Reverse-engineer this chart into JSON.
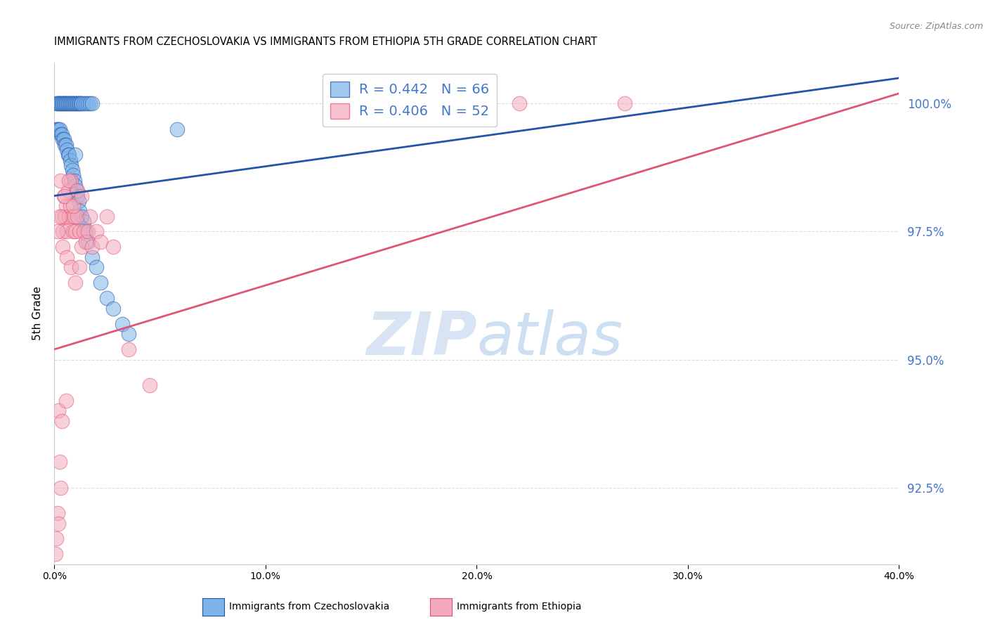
{
  "title": "IMMIGRANTS FROM CZECHOSLOVAKIA VS IMMIGRANTS FROM ETHIOPIA 5TH GRADE CORRELATION CHART",
  "source": "Source: ZipAtlas.com",
  "ylabel": "5th Grade",
  "ylabel_right_ticks": [
    92.5,
    95.0,
    97.5,
    100.0
  ],
  "xmin": 0.0,
  "xmax": 40.0,
  "ymin": 91.0,
  "ymax": 100.8,
  "legend_blue_r": "0.442",
  "legend_blue_n": "66",
  "legend_pink_r": "0.406",
  "legend_pink_n": "52",
  "blue_color": "#7EB3E8",
  "pink_color": "#F4AABC",
  "blue_line_color": "#2255AA",
  "pink_line_color": "#E05575",
  "right_axis_color": "#4477CC",
  "blue_trend": [
    0.0,
    98.2,
    40.0,
    100.5
  ],
  "pink_trend": [
    0.0,
    95.2,
    40.0,
    100.2
  ],
  "blue_scatter_x": [
    0.1,
    0.15,
    0.2,
    0.25,
    0.3,
    0.35,
    0.4,
    0.45,
    0.5,
    0.55,
    0.6,
    0.65,
    0.7,
    0.75,
    0.8,
    0.85,
    0.9,
    0.95,
    1.0,
    1.05,
    1.1,
    1.15,
    1.2,
    1.25,
    1.3,
    1.4,
    1.5,
    1.6,
    1.7,
    1.8,
    0.1,
    0.15,
    0.2,
    0.25,
    0.3,
    0.35,
    0.4,
    0.45,
    0.5,
    0.55,
    0.6,
    0.65,
    0.7,
    0.75,
    0.8,
    0.85,
    0.9,
    0.95,
    1.0,
    1.05,
    1.1,
    1.15,
    1.2,
    1.3,
    1.4,
    1.5,
    1.6,
    1.8,
    2.0,
    2.2,
    2.5,
    2.8,
    3.2,
    3.5,
    1.0,
    5.8
  ],
  "blue_scatter_y": [
    100.0,
    100.0,
    100.0,
    100.0,
    100.0,
    100.0,
    100.0,
    100.0,
    100.0,
    100.0,
    100.0,
    100.0,
    100.0,
    100.0,
    100.0,
    100.0,
    100.0,
    100.0,
    100.0,
    100.0,
    100.0,
    100.0,
    100.0,
    100.0,
    100.0,
    100.0,
    100.0,
    100.0,
    100.0,
    100.0,
    99.5,
    99.5,
    99.5,
    99.5,
    99.4,
    99.4,
    99.3,
    99.3,
    99.2,
    99.2,
    99.1,
    99.0,
    99.0,
    98.9,
    98.8,
    98.7,
    98.6,
    98.5,
    98.4,
    98.3,
    98.2,
    98.1,
    97.9,
    97.8,
    97.7,
    97.5,
    97.3,
    97.0,
    96.8,
    96.5,
    96.2,
    96.0,
    95.7,
    95.5,
    99.0,
    99.5
  ],
  "pink_scatter_x": [
    0.05,
    0.1,
    0.15,
    0.2,
    0.25,
    0.3,
    0.35,
    0.4,
    0.45,
    0.5,
    0.55,
    0.6,
    0.65,
    0.7,
    0.75,
    0.8,
    0.85,
    0.9,
    0.95,
    1.0,
    1.1,
    1.2,
    1.3,
    1.4,
    1.5,
    1.6,
    1.7,
    1.8,
    2.0,
    2.2,
    2.5,
    2.8,
    0.3,
    0.5,
    0.7,
    0.9,
    1.1,
    1.3,
    0.15,
    0.25,
    0.4,
    0.6,
    0.8,
    1.0,
    1.2,
    3.5,
    4.5,
    22.0,
    27.0,
    0.2,
    0.35,
    0.55
  ],
  "pink_scatter_y": [
    91.2,
    91.5,
    92.0,
    91.8,
    93.0,
    92.5,
    97.8,
    97.5,
    98.2,
    97.8,
    98.0,
    97.5,
    98.3,
    97.8,
    98.0,
    98.5,
    97.8,
    97.5,
    97.8,
    97.5,
    97.8,
    97.5,
    97.2,
    97.5,
    97.3,
    97.5,
    97.8,
    97.2,
    97.5,
    97.3,
    97.8,
    97.2,
    98.5,
    98.2,
    98.5,
    98.0,
    98.3,
    98.2,
    97.5,
    97.8,
    97.2,
    97.0,
    96.8,
    96.5,
    96.8,
    95.2,
    94.5,
    100.0,
    100.0,
    94.0,
    93.8,
    94.2
  ],
  "watermark_zip": "ZIP",
  "watermark_atlas": "atlas",
  "bottom_legend_labels": [
    "Immigrants from Czechoslovakia",
    "Immigrants from Ethiopia"
  ]
}
